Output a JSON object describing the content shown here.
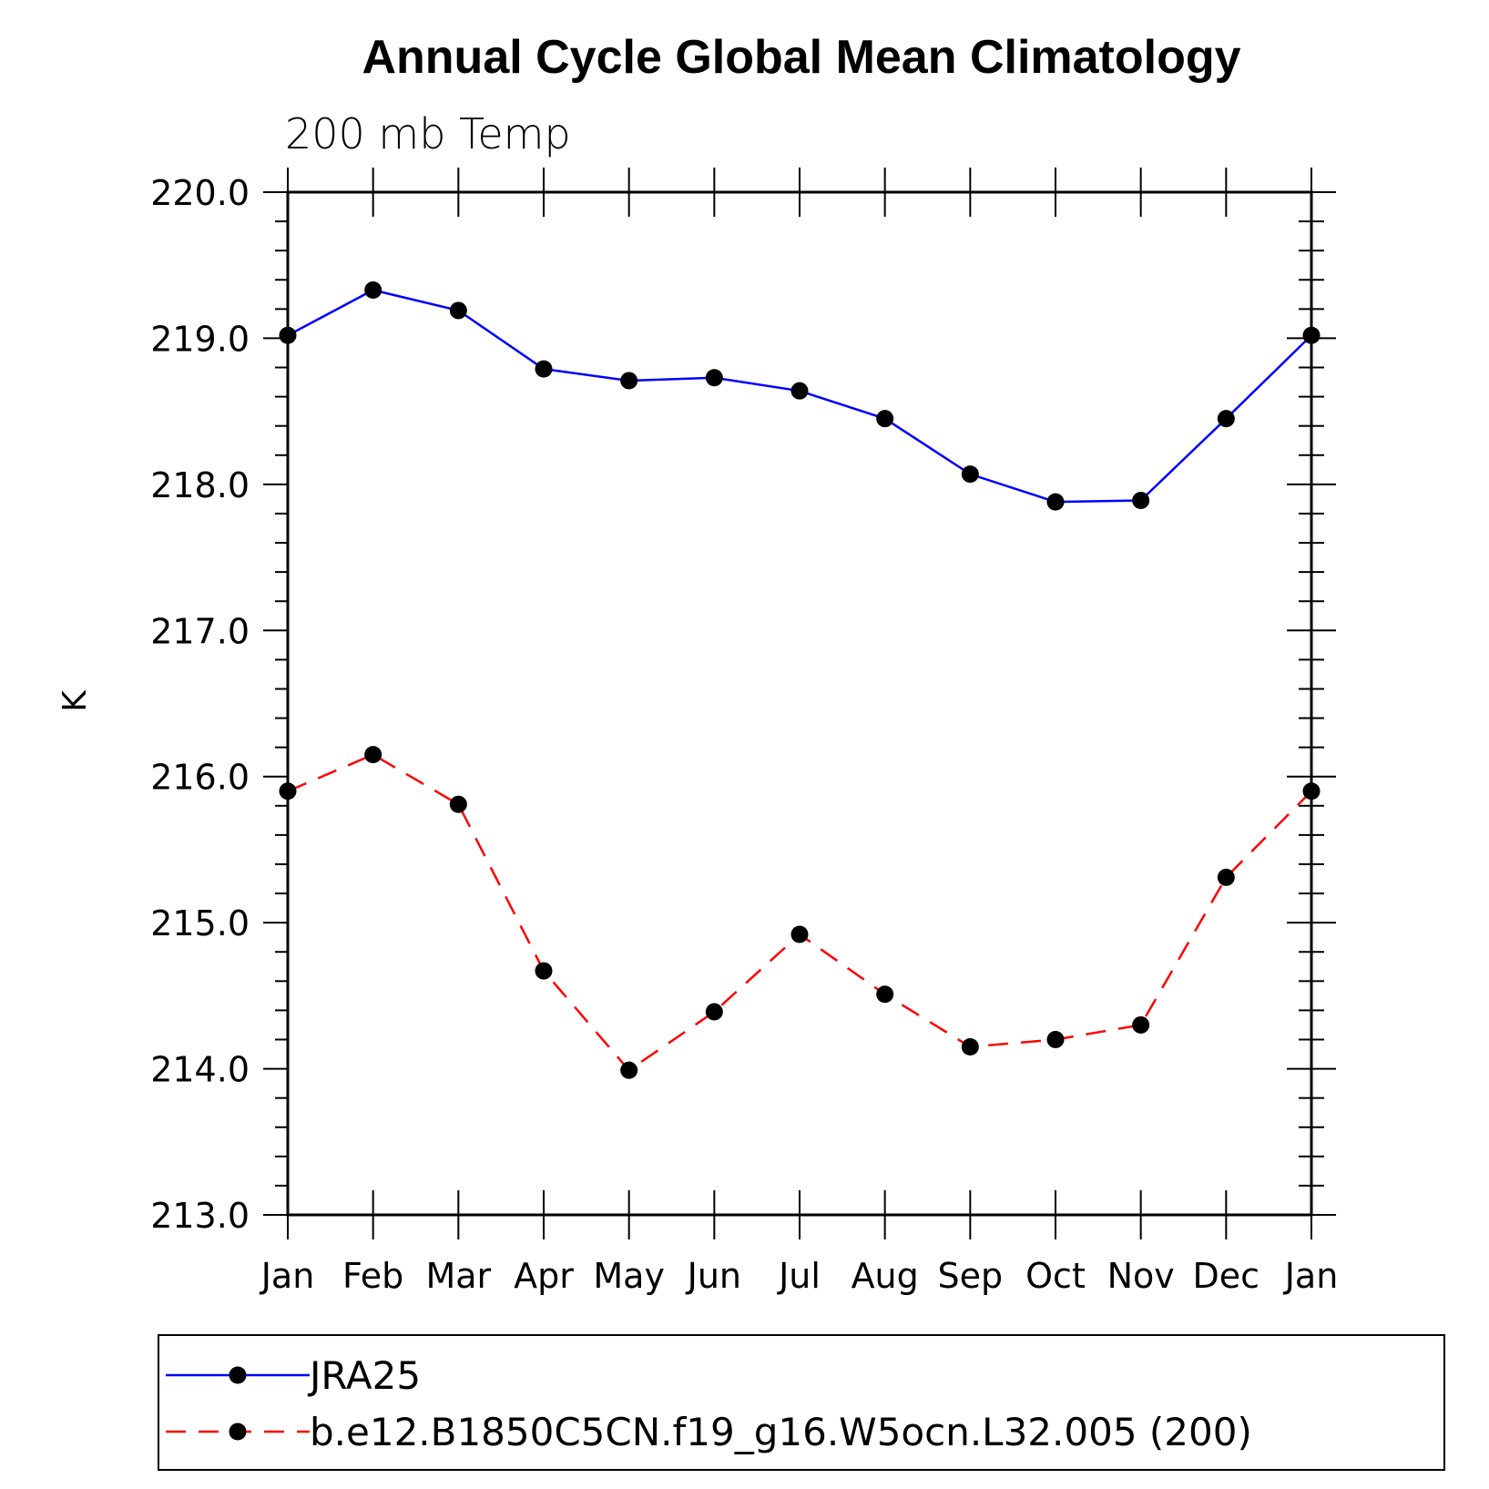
{
  "title": "Annual Cycle Global Mean Climatology",
  "subtitle": "200 mb Temp",
  "ylabel": "K",
  "chart_data": {
    "type": "line",
    "title": "Annual Cycle Global Mean Climatology",
    "subtitle": "200 mb Temp",
    "xlabel": "",
    "ylabel": "K",
    "categories": [
      "Jan",
      "Feb",
      "Mar",
      "Apr",
      "May",
      "Jun",
      "Jul",
      "Aug",
      "Sep",
      "Oct",
      "Nov",
      "Dec",
      "Jan"
    ],
    "ylim": [
      213.0,
      220.0
    ],
    "yticks": [
      "213.0",
      "214.0",
      "215.0",
      "216.0",
      "217.0",
      "218.0",
      "219.0",
      "220.0"
    ],
    "legend_position": "bottom",
    "grid": false,
    "series": [
      {
        "name": "JRA25",
        "color": "#0000ff",
        "line_style": "solid",
        "marker": "filled-circle",
        "values": [
          219.02,
          219.33,
          219.19,
          218.79,
          218.71,
          218.73,
          218.64,
          218.45,
          218.07,
          217.88,
          217.89,
          218.45,
          219.02
        ]
      },
      {
        "name": "b.e12.B1850C5CN.f19_g16.W5ocn.L32.005 (200)",
        "color": "#ff0000",
        "line_style": "dashed",
        "marker": "filled-circle",
        "values": [
          215.9,
          216.15,
          215.81,
          214.67,
          213.99,
          214.39,
          214.92,
          214.51,
          214.15,
          214.2,
          214.3,
          215.31,
          215.9
        ]
      }
    ]
  }
}
